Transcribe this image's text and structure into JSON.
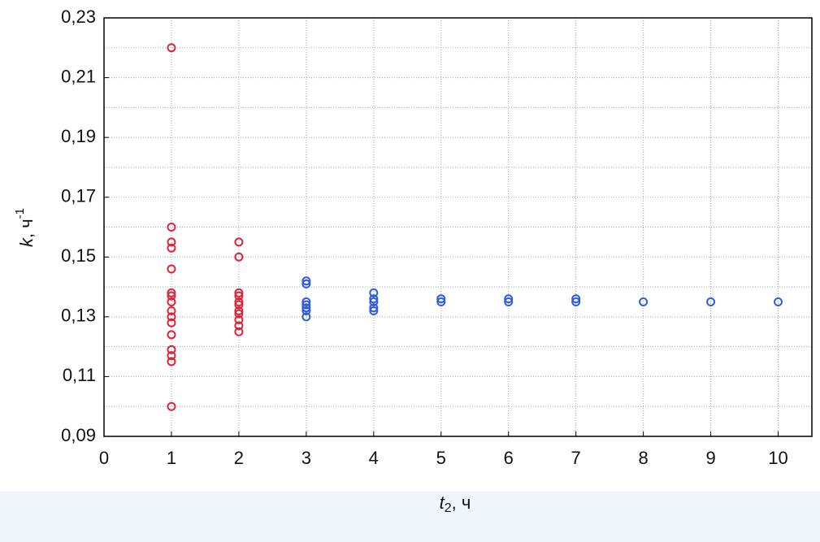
{
  "chart_data": {
    "type": "scatter",
    "xlabel": {
      "var": "t",
      "sub": "2",
      "rest": ", ч"
    },
    "ylabel": {
      "var": "k",
      "rest": ", ч",
      "sup": "-1"
    },
    "xlim": [
      0,
      10.5
    ],
    "ylim": [
      0.09,
      0.23
    ],
    "xticks": [
      0,
      1,
      2,
      3,
      4,
      5,
      6,
      7,
      8,
      9,
      10
    ],
    "yticks": [
      {
        "value": 0.09,
        "label": "0,09"
      },
      {
        "value": 0.11,
        "label": "0,11"
      },
      {
        "value": 0.13,
        "label": "0,13"
      },
      {
        "value": 0.15,
        "label": "0,15"
      },
      {
        "value": 0.17,
        "label": "0,17"
      },
      {
        "value": 0.19,
        "label": "0,19"
      },
      {
        "value": 0.21,
        "label": "0,21"
      },
      {
        "value": 0.23,
        "label": "0,23"
      }
    ],
    "y_minor_grid": [
      0.1,
      0.12,
      0.14,
      0.16,
      0.18,
      0.2,
      0.22
    ],
    "grid": true,
    "series": [
      {
        "color": "#d9263a",
        "x": [
          1,
          1,
          1,
          1,
          1,
          1,
          1,
          1,
          1,
          1,
          1,
          1,
          1,
          1,
          1,
          1,
          2,
          2,
          2,
          2,
          2,
          2,
          2,
          2,
          2,
          2,
          2
        ],
        "values": [
          0.22,
          0.16,
          0.155,
          0.153,
          0.146,
          0.138,
          0.137,
          0.135,
          0.132,
          0.13,
          0.128,
          0.124,
          0.119,
          0.117,
          0.115,
          0.1,
          0.155,
          0.15,
          0.138,
          0.137,
          0.135,
          0.134,
          0.132,
          0.131,
          0.129,
          0.127,
          0.125
        ]
      },
      {
        "color": "#2f5ddb",
        "x": [
          3,
          3,
          3,
          3,
          3,
          3,
          3,
          4,
          4,
          4,
          4,
          4,
          5,
          5,
          6,
          6,
          7,
          7,
          8,
          9,
          10
        ],
        "values": [
          0.142,
          0.141,
          0.135,
          0.134,
          0.133,
          0.132,
          0.13,
          0.138,
          0.136,
          0.135,
          0.133,
          0.132,
          0.136,
          0.135,
          0.136,
          0.135,
          0.136,
          0.135,
          0.135,
          0.135,
          0.135
        ]
      }
    ]
  }
}
